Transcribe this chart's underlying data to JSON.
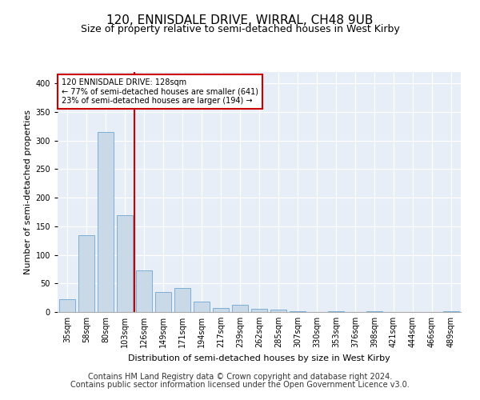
{
  "title1": "120, ENNISDALE DRIVE, WIRRAL, CH48 9UB",
  "title2": "Size of property relative to semi-detached houses in West Kirby",
  "xlabel": "Distribution of semi-detached houses by size in West Kirby",
  "ylabel": "Number of semi-detached properties",
  "categories": [
    "35sqm",
    "58sqm",
    "80sqm",
    "103sqm",
    "126sqm",
    "149sqm",
    "171sqm",
    "194sqm",
    "217sqm",
    "239sqm",
    "262sqm",
    "285sqm",
    "307sqm",
    "330sqm",
    "353sqm",
    "376sqm",
    "398sqm",
    "421sqm",
    "444sqm",
    "466sqm",
    "489sqm"
  ],
  "values": [
    22,
    134,
    315,
    169,
    73,
    35,
    42,
    18,
    7,
    12,
    5,
    4,
    1,
    0,
    1,
    0,
    2,
    0,
    0,
    0,
    2
  ],
  "bar_color": "#c9d9e8",
  "bar_edge_color": "#7bafd4",
  "vline_color": "#cc0000",
  "annotation_line1": "120 ENNISDALE DRIVE: 128sqm",
  "annotation_line2": "← 77% of semi-detached houses are smaller (641)",
  "annotation_line3": "23% of semi-detached houses are larger (194) →",
  "annotation_box_color": "#ffffff",
  "annotation_box_edge": "#cc0000",
  "ylim": [
    0,
    420
  ],
  "yticks": [
    0,
    50,
    100,
    150,
    200,
    250,
    300,
    350,
    400
  ],
  "background_color": "#e8eef7",
  "footer1": "Contains HM Land Registry data © Crown copyright and database right 2024.",
  "footer2": "Contains public sector information licensed under the Open Government Licence v3.0.",
  "title1_fontsize": 11,
  "title2_fontsize": 9,
  "ylabel_fontsize": 8,
  "xlabel_fontsize": 8,
  "tick_fontsize": 7,
  "footer_fontsize": 7
}
